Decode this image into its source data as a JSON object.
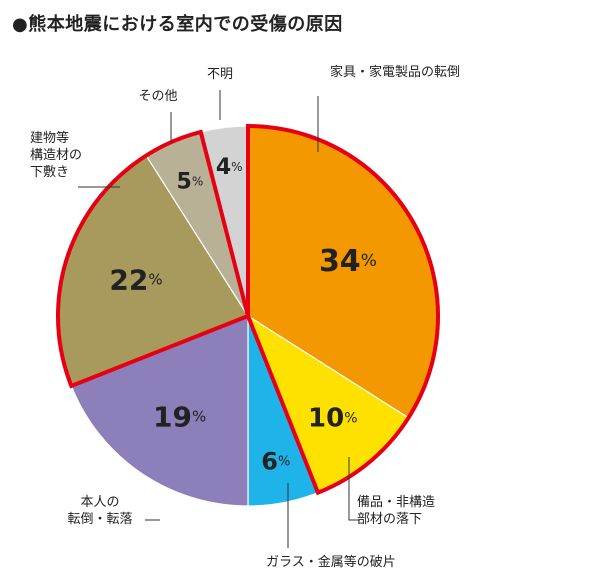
{
  "title": "●熊本地震における室内での受傷の原因",
  "chart_data": {
    "type": "pie",
    "title": "●熊本地震における室内での受傷の原因",
    "start_angle_deg": 0,
    "direction": "clockwise",
    "highlight_ranges": [
      [
        0,
        1
      ],
      [
        4,
        5
      ]
    ],
    "highlight_color": "#e60012",
    "slices": [
      {
        "label_lines": [
          "家具・家電製品の転倒"
        ],
        "value": 34,
        "value_text": "34",
        "color": "#f39800"
      },
      {
        "label_lines": [
          "備品・非構造",
          "部材の落下"
        ],
        "value": 10,
        "value_text": "10",
        "color": "#ffe100"
      },
      {
        "label_lines": [
          "ガラス・金属等の破片"
        ],
        "value": 6,
        "value_text": "6",
        "color": "#1eb4ea"
      },
      {
        "label_lines": [
          "本人の",
          "転倒・転落"
        ],
        "value": 19,
        "value_text": "19",
        "color": "#8c7fba"
      },
      {
        "label_lines": [
          "建物等",
          "構造材の",
          "下敷き"
        ],
        "value": 22,
        "value_text": "22",
        "color": "#a8995c"
      },
      {
        "label_lines": [
          "その他"
        ],
        "value": 5,
        "value_text": "5",
        "color": "#b9b196"
      },
      {
        "label_lines": [
          "不明"
        ],
        "value": 4,
        "value_text": "4",
        "color": "#d3d3d3"
      }
    ],
    "percent_symbol": "%"
  }
}
